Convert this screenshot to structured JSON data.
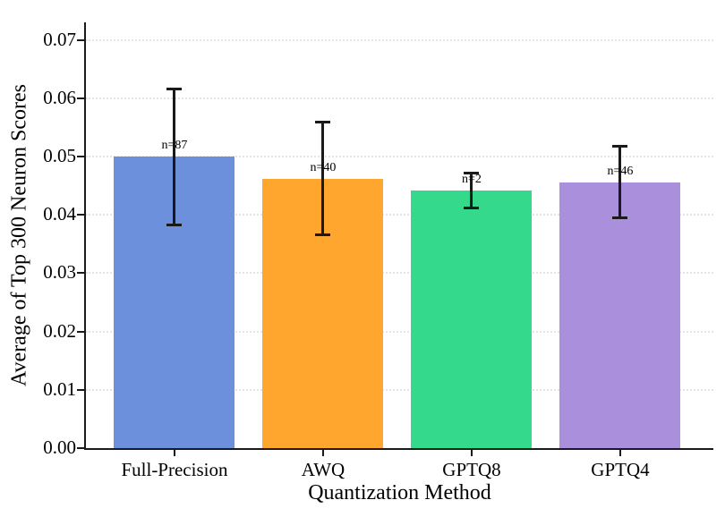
{
  "chart_data": {
    "type": "bar",
    "title": "",
    "xlabel": "Quantization Method",
    "ylabel": "Average of Top 300 Neuron Scores",
    "categories": [
      "Full-Precision",
      "AWQ",
      "GPTQ8",
      "GPTQ4"
    ],
    "values": [
      0.05,
      0.0462,
      0.0441,
      0.0456
    ],
    "error_low": [
      0.0383,
      0.0366,
      0.0412,
      0.0395
    ],
    "error_high": [
      0.0616,
      0.0559,
      0.0472,
      0.0518
    ],
    "annotations": [
      "n=87",
      "n=40",
      "n=2",
      "n=46"
    ],
    "bar_colors": [
      "#6D90DC",
      "#FFA62E",
      "#35D98B",
      "#A98FDC"
    ],
    "ylim": [
      0,
      0.073
    ],
    "yticks": [
      0,
      0.01,
      0.02,
      0.03,
      0.04,
      0.05,
      0.06,
      0.07
    ],
    "ytick_labels": [
      "0.00",
      "0.01",
      "0.02",
      "0.03",
      "0.04",
      "0.05",
      "0.06",
      "0.07"
    ],
    "grid": "horizontal-dotted",
    "legend": "none",
    "axis_color": "#1a1a1a",
    "grid_color": "#e4e4e4",
    "errorbar_color": "#1a1a1a"
  }
}
